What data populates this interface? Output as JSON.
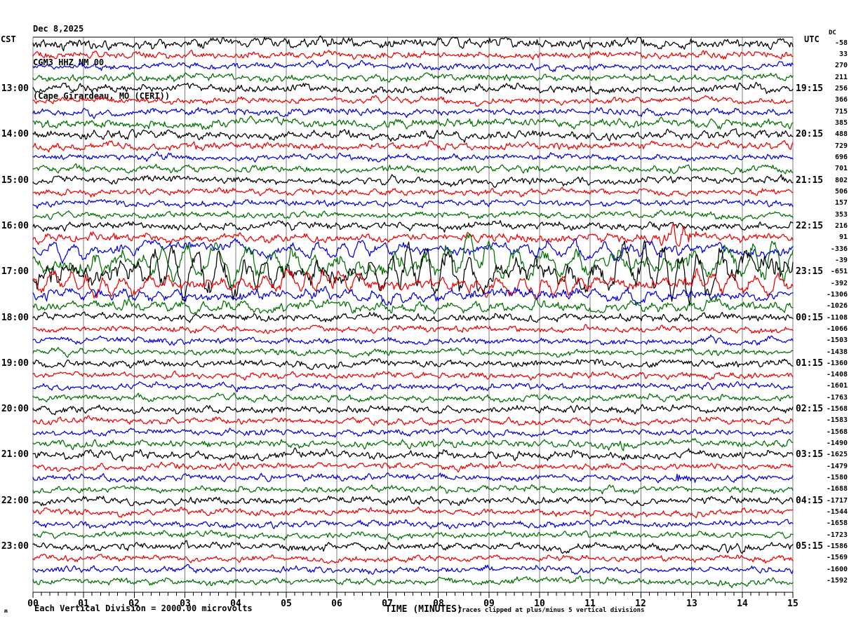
{
  "header": {
    "date": "Dec 8,2025",
    "station": "CGM3 HHZ NM 00",
    "location": "(Cape Girardeau, MO (CERI))"
  },
  "axes": {
    "left_timezone": "CST",
    "right_timezone": "UTC",
    "dc_label": "DC",
    "x_axis_title": "TIME (MINUTES)",
    "x_tick_labels": [
      "00",
      "01",
      "02",
      "03",
      "04",
      "05",
      "06",
      "07",
      "08",
      "09",
      "10",
      "11",
      "12",
      "13",
      "14",
      "15"
    ],
    "footer_left_glyph": "ʍ",
    "footer_left": "Each Vertical Division = 2000.00 microvolts",
    "footer_right": "Traces clipped at plus/minus 5 vertical divisions"
  },
  "chart_data": {
    "type": "line",
    "subtype": "helicorder-seismogram",
    "minutes_per_row": 15,
    "x_range_minutes": [
      0,
      15
    ],
    "minor_ticks_per_minute": 6,
    "clip_divisions": 5,
    "microvolts_per_division": 2000.0,
    "grid_color": "#7f7f7f",
    "palette": {
      "black": "#000000",
      "red": "#ee0000",
      "blue": "#0000dd",
      "green": "#007000"
    },
    "color_cycle": [
      "black",
      "red",
      "blue",
      "green"
    ],
    "rows": [
      {
        "dc": -58,
        "color": "black",
        "amp": 7.5,
        "sw": 0.4
      },
      {
        "dc": 33,
        "color": "red",
        "amp": 5.5
      },
      {
        "dc": 270,
        "color": "blue",
        "amp": 5
      },
      {
        "dc": 211,
        "color": "green",
        "amp": 5.5
      },
      {
        "cst": "13:00",
        "utc": "19:15",
        "dc": 256,
        "color": "black",
        "amp": 6.5
      },
      {
        "dc": 366,
        "color": "red",
        "amp": 5
      },
      {
        "dc": 715,
        "color": "blue",
        "amp": 5.5
      },
      {
        "dc": 385,
        "color": "green",
        "amp": 6.5,
        "events": [
          {
            "start_min": 8.1,
            "end_min": 9.1,
            "amp": 5
          }
        ]
      },
      {
        "cst": "14:00",
        "utc": "20:15",
        "dc": 488,
        "color": "black",
        "amp": 6.5,
        "events": [
          {
            "start_min": 0.75,
            "end_min": 1.8,
            "amp": 4
          }
        ]
      },
      {
        "dc": 729,
        "color": "red",
        "amp": 6
      },
      {
        "dc": 696,
        "color": "blue",
        "amp": 5
      },
      {
        "dc": 701,
        "color": "green",
        "amp": 5.5
      },
      {
        "cst": "15:00",
        "utc": "21:15",
        "dc": 802,
        "color": "black",
        "amp": 6
      },
      {
        "dc": 506,
        "color": "red",
        "amp": 5
      },
      {
        "dc": 157,
        "color": "blue",
        "amp": 5
      },
      {
        "dc": 353,
        "color": "green",
        "amp": 5
      },
      {
        "cst": "16:00",
        "utc": "22:15",
        "dc": 216,
        "color": "black",
        "amp": 6
      },
      {
        "dc": 91,
        "color": "red",
        "amp": 6.5,
        "events": [
          {
            "start_min": 12.1,
            "end_min": 13.3,
            "amp": 10
          }
        ]
      },
      {
        "dc": -336,
        "color": "blue",
        "amp": 11,
        "sw": 0.8,
        "period": 34,
        "hfw": 0.3,
        "mfw": 0.4,
        "lfw": 0.5
      },
      {
        "dc": -39,
        "color": "green",
        "amp": 24,
        "sw": 0.95,
        "period": 36,
        "hfw": 0.2,
        "mfw": 0.35,
        "lfw": 0.45
      },
      {
        "cst": "17:00",
        "utc": "23:15",
        "dc": -651,
        "color": "black",
        "amp": 30,
        "sw": 1.0,
        "period": 30,
        "hfw": 0.2,
        "mfw": 0.35,
        "lfw": 0.45
      },
      {
        "dc": -392,
        "color": "red",
        "amp": 13,
        "sw": 0.85,
        "period": 28,
        "hfw": 0.3,
        "mfw": 0.4,
        "lfw": 0.5
      },
      {
        "dc": -1306,
        "color": "blue",
        "amp": 10,
        "sw": 0.6,
        "period": 30,
        "hfw": 0.35,
        "mfw": 0.45,
        "lfw": 0.5
      },
      {
        "dc": -1026,
        "color": "green",
        "amp": 9,
        "sw": 0.5,
        "period": 32,
        "hfw": 0.4,
        "mfw": 0.45,
        "lfw": 0.5
      },
      {
        "cst": "18:00",
        "utc": "00:15",
        "dc": -1108,
        "color": "black",
        "amp": 6
      },
      {
        "dc": -1066,
        "color": "red",
        "amp": 5
      },
      {
        "dc": -1503,
        "color": "blue",
        "amp": 5,
        "events": [
          {
            "start_min": 13.0,
            "end_min": 13.9,
            "amp": 4.5
          }
        ]
      },
      {
        "dc": -1438,
        "color": "green",
        "amp": 5
      },
      {
        "cst": "19:00",
        "utc": "01:15",
        "dc": -1360,
        "color": "black",
        "amp": 5.5
      },
      {
        "dc": -1408,
        "color": "red",
        "amp": 5
      },
      {
        "dc": -1601,
        "color": "blue",
        "amp": 5
      },
      {
        "dc": -1763,
        "color": "green",
        "amp": 5
      },
      {
        "cst": "20:00",
        "utc": "02:15",
        "dc": -1568,
        "color": "black",
        "amp": 5.5
      },
      {
        "dc": -1583,
        "color": "red",
        "amp": 5
      },
      {
        "dc": -1568,
        "color": "blue",
        "amp": 5
      },
      {
        "dc": -1490,
        "color": "green",
        "amp": 5.5,
        "events": [
          {
            "start_min": 11.0,
            "end_min": 12.0,
            "amp": 5.5
          }
        ]
      },
      {
        "cst": "21:00",
        "utc": "03:15",
        "dc": -1625,
        "color": "black",
        "amp": 6.5
      },
      {
        "dc": -1479,
        "color": "red",
        "amp": 5
      },
      {
        "dc": -1580,
        "color": "blue",
        "amp": 5,
        "events": [
          {
            "start_min": 12.4,
            "end_min": 13.3,
            "amp": 5.5
          }
        ]
      },
      {
        "dc": -1688,
        "color": "green",
        "amp": 5
      },
      {
        "cst": "22:00",
        "utc": "04:15",
        "dc": -1717,
        "color": "black",
        "amp": 5.5
      },
      {
        "dc": -1544,
        "color": "red",
        "amp": 5
      },
      {
        "dc": -1658,
        "color": "blue",
        "amp": 5
      },
      {
        "dc": -1723,
        "color": "green",
        "amp": 5
      },
      {
        "cst": "23:00",
        "utc": "05:15",
        "dc": -1586,
        "color": "black",
        "amp": 6,
        "events": [
          {
            "start_min": 13.5,
            "end_min": 14.4,
            "amp": 4.5
          }
        ]
      },
      {
        "dc": -1569,
        "color": "red",
        "amp": 5
      },
      {
        "dc": -1600,
        "color": "blue",
        "amp": 5
      },
      {
        "dc": -1592,
        "color": "green",
        "amp": 5
      }
    ]
  }
}
